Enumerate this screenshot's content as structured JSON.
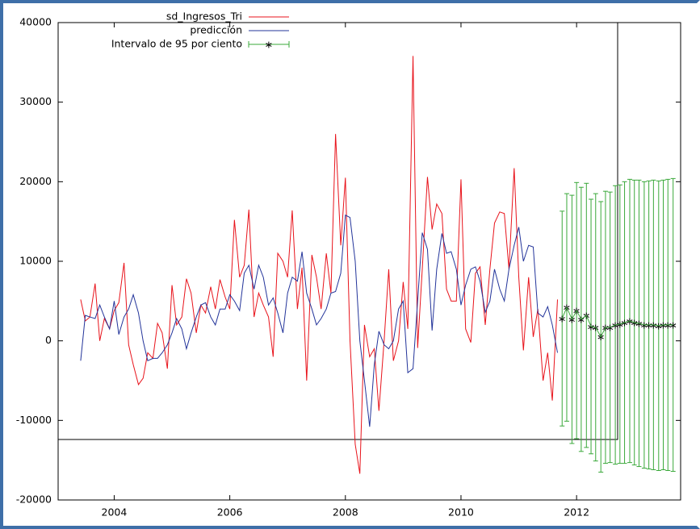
{
  "chart_data": {
    "type": "line",
    "x": [
      2003.42,
      2003.5,
      2003.58,
      2003.67,
      2003.75,
      2003.83,
      2003.92,
      2004,
      2004.08,
      2004.17,
      2004.25,
      2004.33,
      2004.42,
      2004.5,
      2004.58,
      2004.67,
      2004.75,
      2004.83,
      2004.92,
      2005,
      2005.08,
      2005.17,
      2005.25,
      2005.33,
      2005.42,
      2005.5,
      2005.58,
      2005.67,
      2005.75,
      2005.83,
      2005.92,
      2006,
      2006.08,
      2006.17,
      2006.25,
      2006.33,
      2006.42,
      2006.5,
      2006.58,
      2006.67,
      2006.75,
      2006.83,
      2006.92,
      2007,
      2007.08,
      2007.17,
      2007.25,
      2007.33,
      2007.42,
      2007.5,
      2007.58,
      2007.67,
      2007.75,
      2007.83,
      2007.92,
      2008,
      2008.08,
      2008.17,
      2008.25,
      2008.33,
      2008.42,
      2008.5,
      2008.58,
      2008.67,
      2008.75,
      2008.83,
      2008.92,
      2009,
      2009.08,
      2009.17,
      2009.25,
      2009.33,
      2009.42,
      2009.5,
      2009.58,
      2009.67,
      2009.75,
      2009.83,
      2009.92,
      2010,
      2010.08,
      2010.17,
      2010.25,
      2010.33,
      2010.42,
      2010.5,
      2010.58,
      2010.67,
      2010.75,
      2010.83,
      2010.92,
      2011,
      2011.08,
      2011.17,
      2011.25,
      2011.33,
      2011.42,
      2011.5,
      2011.58,
      2011.67
    ],
    "series": [
      {
        "name": "sd_Ingresos_Tri",
        "color": "#e8131b",
        "values": [
          5200,
          2500,
          3000,
          7200,
          0,
          2800,
          1500,
          3800,
          4800,
          9800,
          -500,
          -3000,
          -5500,
          -4700,
          -1500,
          -2200,
          2200,
          1000,
          -3500,
          7000,
          2000,
          3000,
          7800,
          6000,
          1000,
          4500,
          3500,
          6800,
          4000,
          7700,
          5500,
          4000,
          15200,
          8000,
          9500,
          16500,
          3000,
          6000,
          4500,
          3000,
          -2000,
          11000,
          10000,
          8000,
          16400,
          4000,
          9200,
          -5000,
          10800,
          8000,
          4000,
          11000,
          6000,
          26000,
          12000,
          20500,
          0,
          -13000,
          -16700,
          2000,
          -2000,
          -1000,
          -8800,
          0,
          9000,
          -2500,
          0,
          7400,
          1500,
          35800,
          -900,
          9000,
          20600,
          14000,
          17200,
          16000,
          6500,
          5000,
          5000,
          20300,
          1500,
          -200,
          8500,
          9300,
          2000,
          9000,
          14800,
          16200,
          16000,
          9000,
          21700,
          8000,
          -1200,
          8000,
          500,
          4000,
          -5000,
          -1500,
          -7500,
          5200
        ]
      },
      {
        "name": "predicción",
        "color": "#23349a",
        "values": [
          -2500,
          3200,
          3000,
          2800,
          4500,
          3000,
          1500,
          5000,
          800,
          3000,
          4000,
          5800,
          3500,
          0,
          -2500,
          -2200,
          -2200,
          -1500,
          -500,
          1000,
          2800,
          1500,
          -1000,
          1000,
          3000,
          4500,
          4800,
          3000,
          2000,
          4000,
          4000,
          5800,
          5000,
          3800,
          8500,
          9500,
          6500,
          9500,
          8000,
          4500,
          5400,
          3500,
          1000,
          6000,
          8000,
          7500,
          11200,
          6000,
          4000,
          2000,
          2800,
          4000,
          6000,
          6200,
          8500,
          15800,
          15500,
          10000,
          0,
          -5000,
          -10800,
          -3000,
          1200,
          -500,
          -1000,
          0,
          4000,
          5000,
          -4000,
          -3500,
          5000,
          13600,
          11500,
          1300,
          9000,
          13500,
          11000,
          11200,
          9000,
          4500,
          7000,
          9000,
          9300,
          7500,
          3600,
          5000,
          9000,
          6500,
          5000,
          9000,
          12000,
          14300,
          10000,
          12000,
          11800,
          3500,
          3000,
          4300,
          2000,
          -1500
        ]
      },
      {
        "name": "Intervalo de 95 por ciento",
        "color": "#3aa83a",
        "x": [
          2011.75,
          2011.83,
          2011.92,
          2012,
          2012.08,
          2012.17,
          2012.25,
          2012.33,
          2012.42,
          2012.5,
          2012.58,
          2012.67,
          2012.75,
          2012.83,
          2012.92,
          2013,
          2013.08,
          2013.17,
          2013.25,
          2013.33,
          2013.42,
          2013.5,
          2013.58,
          2013.67
        ],
        "values": [
          2800,
          4200,
          2700,
          3800,
          2700,
          3200,
          1800,
          1700,
          500,
          1700,
          1700,
          2000,
          2100,
          2300,
          2500,
          2300,
          2200,
          2000,
          2000,
          2000,
          1900,
          2000,
          2000,
          2000
        ],
        "errors": [
          13500,
          14300,
          15600,
          16100,
          16600,
          16600,
          16000,
          16800,
          17000,
          17100,
          17000,
          17500,
          17500,
          17700,
          17800,
          17900,
          18000,
          18000,
          18100,
          18200,
          18200,
          18200,
          18300,
          18400
        ]
      }
    ],
    "xlim": [
      2003.03,
      2013.8
    ],
    "xticks": [
      2004,
      2006,
      2008,
      2010,
      2012
    ],
    "ylim": [
      -20000,
      40000
    ],
    "yticks": [
      -20000,
      -10000,
      0,
      10000,
      20000,
      30000,
      40000
    ]
  }
}
